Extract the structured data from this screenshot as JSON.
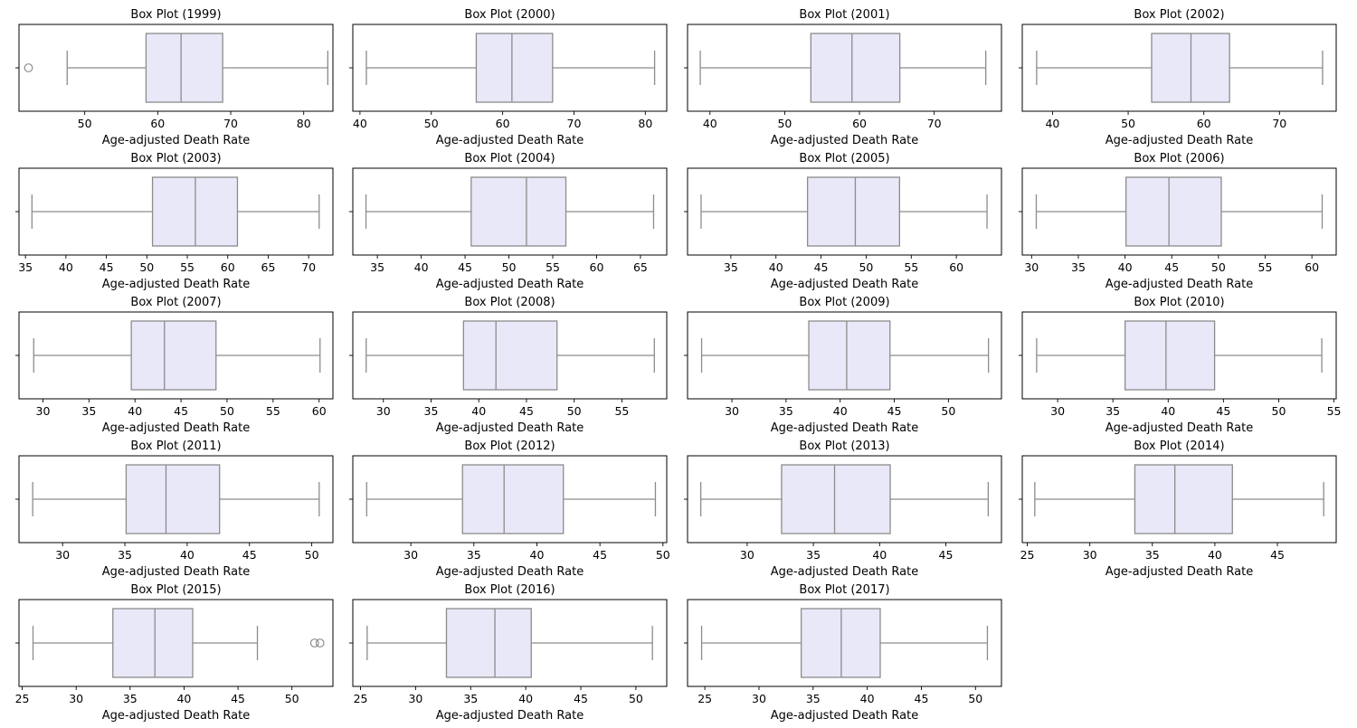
{
  "chart_data": {
    "type": "box",
    "box_color": "#e8e8f8",
    "line_color": "#8c8c8c",
    "panels": [
      {
        "title": "Box Plot (1999)",
        "xlabel": "Age-adjusted Death Rate",
        "xlim": [
          41,
          84
        ],
        "ticks": [
          50,
          60,
          70,
          80
        ],
        "whisker_low": 47.6,
        "q1": 58.4,
        "median": 63.2,
        "q3": 68.9,
        "whisker_high": 83.3,
        "outliers": [
          42.3
        ]
      },
      {
        "title": "Box Plot (2000)",
        "xlabel": "Age-adjusted Death Rate",
        "xlim": [
          39,
          83
        ],
        "ticks": [
          40,
          50,
          60,
          70,
          80
        ],
        "whisker_low": 40.9,
        "q1": 56.3,
        "median": 61.3,
        "q3": 67.0,
        "whisker_high": 81.3,
        "outliers": []
      },
      {
        "title": "Box Plot (2001)",
        "xlabel": "Age-adjusted Death Rate",
        "xlim": [
          37,
          79
        ],
        "ticks": [
          40,
          50,
          60,
          70
        ],
        "whisker_low": 38.7,
        "q1": 53.5,
        "median": 59.0,
        "q3": 65.4,
        "whisker_high": 76.9,
        "outliers": []
      },
      {
        "title": "Box Plot (2002)",
        "xlabel": "Age-adjusted Death Rate",
        "xlim": [
          36,
          77.5
        ],
        "ticks": [
          40,
          50,
          60,
          70
        ],
        "whisker_low": 37.9,
        "q1": 53.1,
        "median": 58.3,
        "q3": 63.4,
        "whisker_high": 75.7,
        "outliers": []
      },
      {
        "title": "Box Plot (2003)",
        "xlabel": "Age-adjusted Death Rate",
        "xlim": [
          34.2,
          73
        ],
        "ticks": [
          35,
          40,
          45,
          50,
          55,
          60,
          65,
          70
        ],
        "whisker_low": 35.8,
        "q1": 50.7,
        "median": 56.0,
        "q3": 61.2,
        "whisker_high": 71.3,
        "outliers": []
      },
      {
        "title": "Box Plot (2004)",
        "xlabel": "Age-adjusted Death Rate",
        "xlim": [
          32.2,
          68
        ],
        "ticks": [
          35,
          40,
          45,
          50,
          55,
          60,
          65
        ],
        "whisker_low": 33.7,
        "q1": 45.7,
        "median": 52.0,
        "q3": 56.5,
        "whisker_high": 66.5,
        "outliers": []
      },
      {
        "title": "Box Plot (2005)",
        "xlabel": "Age-adjusted Death Rate",
        "xlim": [
          30.2,
          65
        ],
        "ticks": [
          35,
          40,
          45,
          50,
          55,
          60
        ],
        "whisker_low": 31.7,
        "q1": 43.5,
        "median": 48.8,
        "q3": 53.7,
        "whisker_high": 63.4,
        "outliers": []
      },
      {
        "title": "Box Plot (2006)",
        "xlabel": "Age-adjusted Death Rate",
        "xlim": [
          29,
          62.6
        ],
        "ticks": [
          30,
          35,
          40,
          45,
          50,
          55,
          60
        ],
        "whisker_low": 30.5,
        "q1": 40.1,
        "median": 44.7,
        "q3": 50.3,
        "whisker_high": 61.1,
        "outliers": []
      },
      {
        "title": "Box Plot (2007)",
        "xlabel": "Age-adjusted Death Rate",
        "xlim": [
          27.4,
          61.5
        ],
        "ticks": [
          30,
          35,
          40,
          45,
          50,
          55,
          60
        ],
        "whisker_low": 29.0,
        "q1": 39.6,
        "median": 43.2,
        "q3": 48.8,
        "whisker_high": 60.1,
        "outliers": []
      },
      {
        "title": "Box Plot (2008)",
        "xlabel": "Age-adjusted Death Rate",
        "xlim": [
          26.8,
          59.7
        ],
        "ticks": [
          30,
          35,
          40,
          45,
          50,
          55
        ],
        "whisker_low": 28.2,
        "q1": 38.4,
        "median": 41.8,
        "q3": 48.2,
        "whisker_high": 58.4,
        "outliers": []
      },
      {
        "title": "Box Plot (2009)",
        "xlabel": "Age-adjusted Death Rate",
        "xlim": [
          25.9,
          54.9
        ],
        "ticks": [
          30,
          35,
          40,
          45,
          50
        ],
        "whisker_low": 27.2,
        "q1": 37.1,
        "median": 40.6,
        "q3": 44.6,
        "whisker_high": 53.7,
        "outliers": []
      },
      {
        "title": "Box Plot (2010)",
        "xlabel": "Age-adjusted Death Rate",
        "xlim": [
          26.8,
          55.2
        ],
        "ticks": [
          30,
          35,
          40,
          45,
          50,
          55
        ],
        "whisker_low": 28.1,
        "q1": 36.1,
        "median": 39.8,
        "q3": 44.2,
        "whisker_high": 53.9,
        "outliers": []
      },
      {
        "title": "Box Plot (2011)",
        "xlabel": "Age-adjusted Death Rate",
        "xlim": [
          26.5,
          51.7
        ],
        "ticks": [
          30,
          35,
          40,
          45,
          50
        ],
        "whisker_low": 27.6,
        "q1": 35.1,
        "median": 38.3,
        "q3": 42.6,
        "whisker_high": 50.6,
        "outliers": []
      },
      {
        "title": "Box Plot (2012)",
        "xlabel": "Age-adjusted Death Rate",
        "xlim": [
          25.4,
          50.3
        ],
        "ticks": [
          30,
          35,
          40,
          45,
          50
        ],
        "whisker_low": 26.5,
        "q1": 34.1,
        "median": 37.4,
        "q3": 42.1,
        "whisker_high": 49.4,
        "outliers": []
      },
      {
        "title": "Box Plot (2013)",
        "xlabel": "Age-adjusted Death Rate",
        "xlim": [
          25.5,
          49.2
        ],
        "ticks": [
          30,
          35,
          40,
          45
        ],
        "whisker_low": 26.5,
        "q1": 32.6,
        "median": 36.6,
        "q3": 40.8,
        "whisker_high": 48.2,
        "outliers": []
      },
      {
        "title": "Box Plot (2014)",
        "xlabel": "Age-adjusted Death Rate",
        "xlim": [
          24.6,
          49.7
        ],
        "ticks": [
          25,
          30,
          35,
          40,
          45
        ],
        "whisker_low": 25.6,
        "q1": 33.6,
        "median": 36.8,
        "q3": 41.4,
        "whisker_high": 48.7,
        "outliers": []
      },
      {
        "title": "Box Plot (2015)",
        "xlabel": "Age-adjusted Death Rate",
        "xlim": [
          24.7,
          53.8
        ],
        "ticks": [
          25,
          30,
          35,
          40,
          45,
          50
        ],
        "whisker_low": 26.0,
        "q1": 33.4,
        "median": 37.3,
        "q3": 40.8,
        "whisker_high": 46.8,
        "outliers": [
          52.1,
          52.6
        ]
      },
      {
        "title": "Box Plot (2016)",
        "xlabel": "Age-adjusted Death Rate",
        "xlim": [
          24.3,
          52.8
        ],
        "ticks": [
          25,
          30,
          35,
          40,
          45,
          50
        ],
        "whisker_low": 25.6,
        "q1": 32.8,
        "median": 37.2,
        "q3": 40.5,
        "whisker_high": 51.5,
        "outliers": []
      },
      {
        "title": "Box Plot (2017)",
        "xlabel": "Age-adjusted Death Rate",
        "xlim": [
          23.4,
          52.4
        ],
        "ticks": [
          25,
          30,
          35,
          40,
          45,
          50
        ],
        "whisker_low": 24.7,
        "q1": 33.9,
        "median": 37.6,
        "q3": 41.2,
        "whisker_high": 51.1,
        "outliers": []
      }
    ]
  }
}
